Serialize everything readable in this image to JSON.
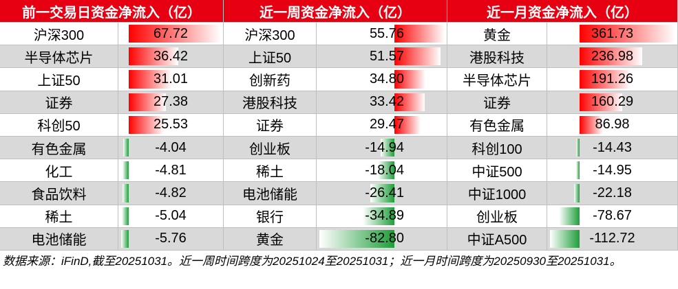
{
  "header": [
    "前一交易日资金净流入（亿）",
    "近一周资金净流入（亿）",
    "近一月资金净流入（亿）"
  ],
  "sections": [
    {
      "rows": [
        [
          "沪深300",
          "67.72"
        ],
        [
          "半导体芯片",
          "36.42"
        ],
        [
          "上证50",
          "31.01"
        ],
        [
          "证券",
          "27.38"
        ],
        [
          "科创50",
          "25.53"
        ],
        [
          "有色金属",
          "-4.04"
        ],
        [
          "化工",
          "-4.81"
        ],
        [
          "食品饮料",
          "-4.82"
        ],
        [
          "稀土",
          "-5.04"
        ],
        [
          "电池储能",
          "-5.76"
        ]
      ]
    },
    {
      "rows": [
        [
          "沪深300",
          "55.76"
        ],
        [
          "上证50",
          "51.57"
        ],
        [
          "创新药",
          "34.80"
        ],
        [
          "港股科技",
          "33.42"
        ],
        [
          "证券",
          "29.47"
        ],
        [
          "创业板",
          "-14.94"
        ],
        [
          "稀土",
          "-18.04"
        ],
        [
          "电池储能",
          "-26.41"
        ],
        [
          "银行",
          "-34.89"
        ],
        [
          "黄金",
          "-82.80"
        ]
      ]
    },
    {
      "rows": [
        [
          "黄金",
          "361.73"
        ],
        [
          "港股科技",
          "236.98"
        ],
        [
          "半导体芯片",
          "191.26"
        ],
        [
          "证券",
          "160.29"
        ],
        [
          "有色金属",
          "86.98"
        ],
        [
          "科创100",
          "-14.43"
        ],
        [
          "中证500",
          "-14.95"
        ],
        [
          "中证1000",
          "-22.18"
        ],
        [
          "创业板",
          "-78.67"
        ],
        [
          "中证A500",
          "-112.72"
        ]
      ]
    }
  ],
  "note": "数据来源：iFinD,截至20251031。近一周时间跨度为20251024至20251031；近一月时间跨度为20250930至20251031。"
}
